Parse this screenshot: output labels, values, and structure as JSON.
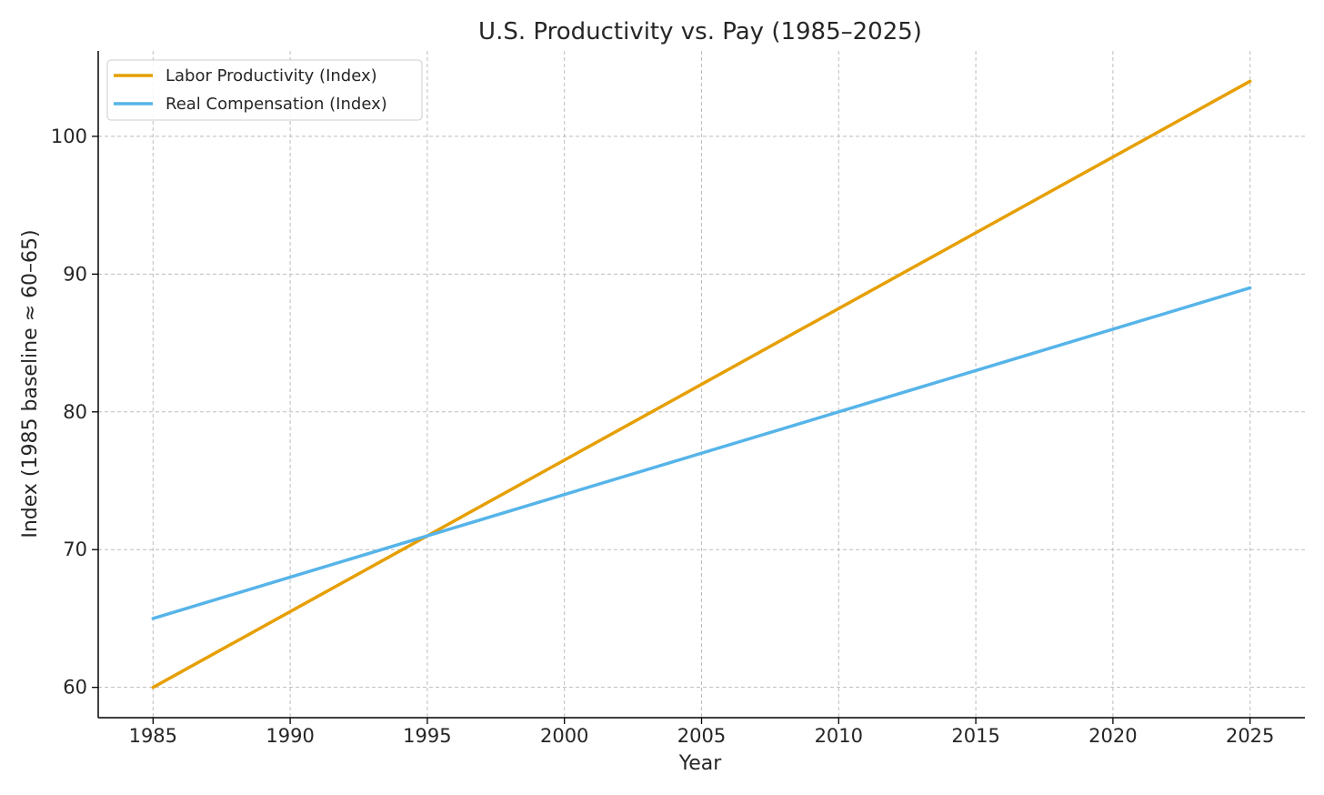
{
  "chart_data": {
    "type": "line",
    "title": "U.S. Productivity vs. Pay (1985–2025)",
    "xlabel": "Year",
    "ylabel": "Index (1985 baseline ≈ 60–65)",
    "x": [
      1985,
      2025
    ],
    "xlim": [
      1983,
      2027
    ],
    "ylim": [
      57.8,
      106.2
    ],
    "xticks": [
      "1985",
      "1990",
      "1995",
      "2000",
      "2005",
      "2010",
      "2015",
      "2020",
      "2025"
    ],
    "yticks": [
      "60",
      "70",
      "80",
      "90",
      "100"
    ],
    "grid": true,
    "legend_position": "top-left",
    "series": [
      {
        "name": "Labor Productivity (Index)",
        "color": "#E69F00",
        "values": [
          60,
          104
        ]
      },
      {
        "name": "Real Compensation (Index)",
        "color": "#56B4E9",
        "values": [
          65,
          89
        ]
      }
    ]
  }
}
